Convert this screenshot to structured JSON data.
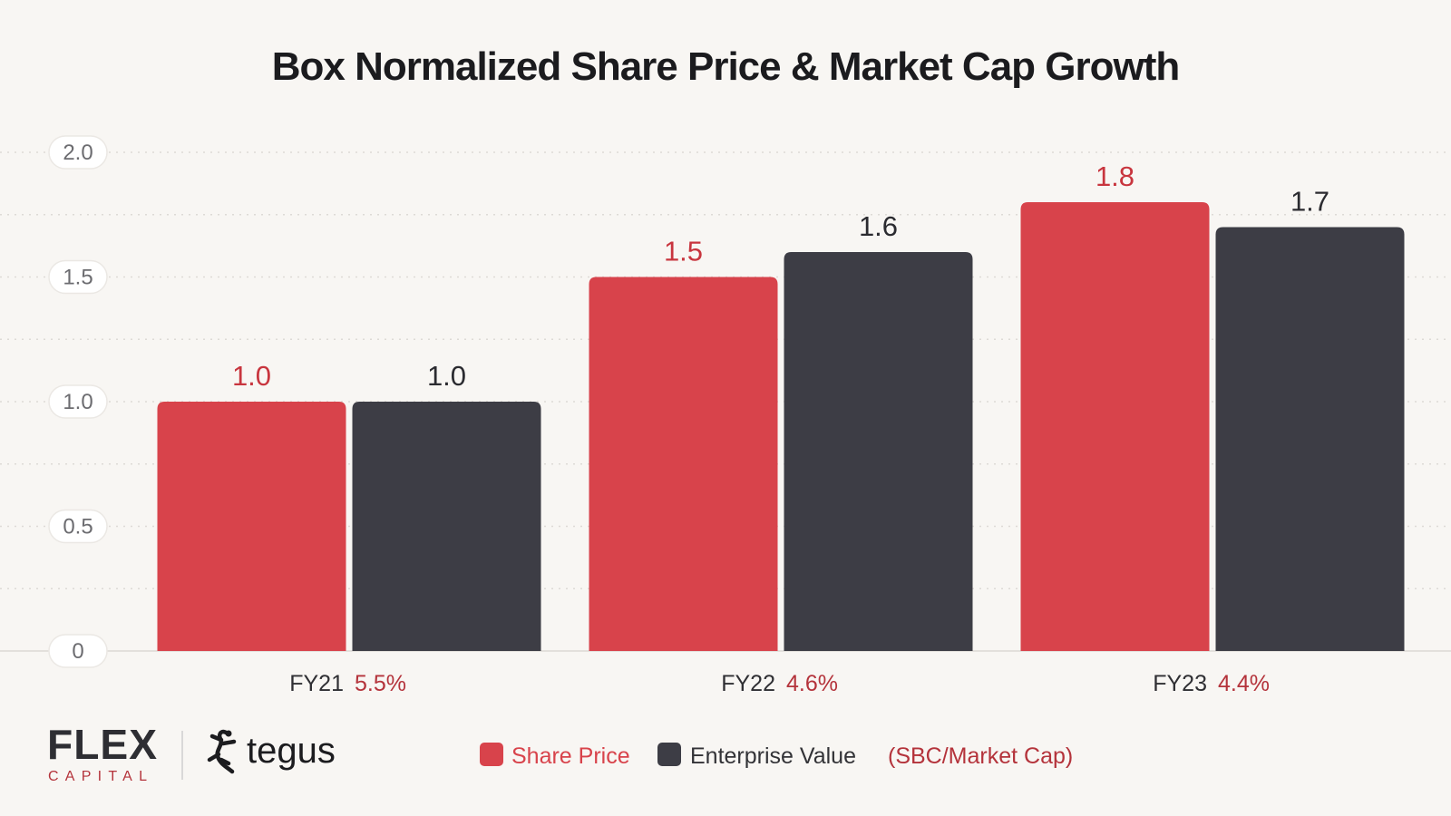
{
  "chart_data": {
    "type": "bar",
    "title": "Box Normalized Share Price & Market Cap Growth",
    "categories": [
      "FY21",
      "FY22",
      "FY23"
    ],
    "category_notes": [
      "5.5%",
      "4.6%",
      "4.4%"
    ],
    "series": [
      {
        "name": "Share Price",
        "values": [
          1.0,
          1.5,
          1.8
        ],
        "labels": [
          "1.0",
          "1.5",
          "1.8"
        ],
        "color": "#d8434b"
      },
      {
        "name": "Enterprise Value",
        "values": [
          1.0,
          1.6,
          1.7
        ],
        "labels": [
          "1.0",
          "1.6",
          "1.7"
        ],
        "color": "#3d3d45"
      }
    ],
    "yticks": [
      "0",
      "0.5",
      "1.0",
      "1.5",
      "2.0"
    ],
    "ylim": [
      0,
      2.0
    ],
    "grid": true,
    "legend": "bottom",
    "legend_note": "(SBC/Market Cap)"
  },
  "branding": {
    "flex": "FLEX",
    "capital": "CAPITAL",
    "tegus": "tegus"
  },
  "colors": {
    "background": "#f8f6f3",
    "share_price": "#d8434b",
    "enterprise_value": "#3d3d45",
    "accent_text": "#b4333b"
  }
}
